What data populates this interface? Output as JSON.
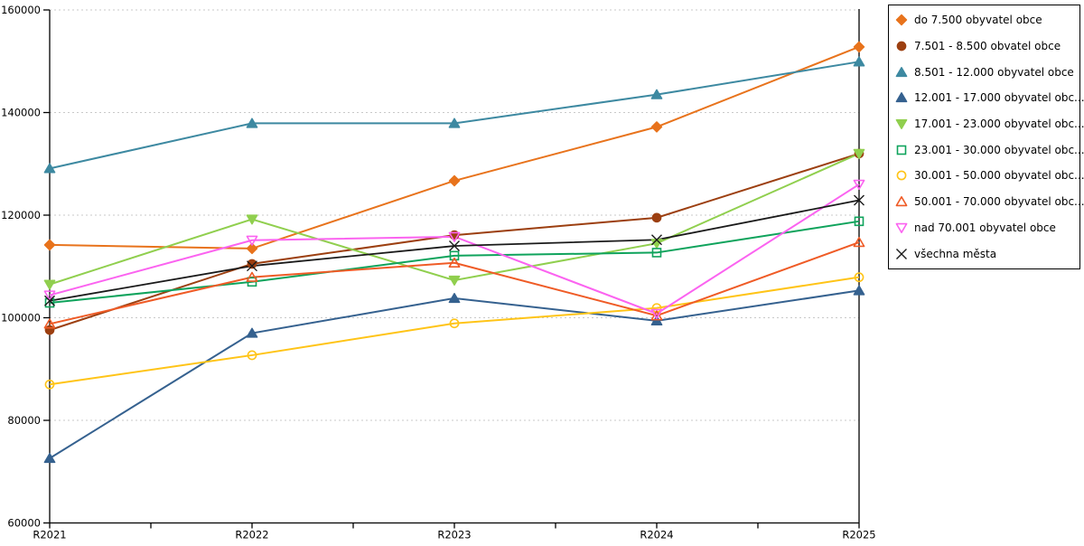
{
  "chart_data": {
    "type": "line",
    "title": "",
    "xlabel": "",
    "ylabel": "",
    "categories": [
      "R2021",
      "R2022",
      "R2023",
      "R2024",
      "R2025"
    ],
    "ylim": [
      60000,
      160000
    ],
    "ytick_step": 20000,
    "ytick_labels": [
      "60000",
      "80000",
      "100000",
      "120000",
      "140000",
      "160000"
    ],
    "grid": "horizontal-dashed",
    "legend_position": "top-right",
    "series": [
      {
        "name": "do 7.500 obyvatel obce",
        "color": "#E8731C",
        "marker": "diamond",
        "fill": "solid",
        "values": [
          114200,
          113500,
          126700,
          137200,
          152800
        ]
      },
      {
        "name": "7.501 - 8.500 obvatel obce",
        "color": "#9C3F10",
        "marker": "circle",
        "fill": "solid",
        "values": [
          97600,
          110500,
          116100,
          119500,
          132000
        ]
      },
      {
        "name": "8.501 - 12.000 obyvatel obce",
        "color": "#3D89A1",
        "marker": "triangle-up",
        "fill": "solid",
        "values": [
          129100,
          137900,
          137900,
          143500,
          149900
        ]
      },
      {
        "name": "12.001 - 17.000 obyvatel obc...",
        "color": "#35618F",
        "marker": "triangle-up",
        "fill": "solid",
        "values": [
          72600,
          97000,
          103800,
          99400,
          105300
        ]
      },
      {
        "name": "17.001 - 23.000 obyvatel obc...",
        "color": "#90CF4E",
        "marker": "triangle-down",
        "fill": "solid",
        "values": [
          106500,
          119200,
          107300,
          114500,
          132000
        ]
      },
      {
        "name": "23.001 - 30.000 obyvatel obc...",
        "color": "#0FA35C",
        "marker": "square",
        "fill": "open",
        "values": [
          102900,
          107000,
          112100,
          112700,
          118800
        ]
      },
      {
        "name": "30.001 - 50.000 obyvatel obc...",
        "color": "#FFC417",
        "marker": "circle",
        "fill": "open",
        "values": [
          87000,
          92700,
          98900,
          101900,
          107900
        ]
      },
      {
        "name": "50.001 - 70.000 obyvatel obc...",
        "color": "#EF5B26",
        "marker": "triangle-up",
        "fill": "open",
        "values": [
          98800,
          107900,
          110700,
          100400,
          114700
        ]
      },
      {
        "name": "nad 70.001 obyvatel obce",
        "color": "#FB63F0",
        "marker": "triangle-down",
        "fill": "open",
        "values": [
          104400,
          115100,
          115800,
          100800,
          126000
        ]
      },
      {
        "name": "všechna města",
        "color": "#1A1A1A",
        "marker": "x",
        "fill": "open",
        "values": [
          103300,
          110100,
          114000,
          115200,
          122900
        ]
      }
    ]
  },
  "colors": {
    "background": "#FFFFFF",
    "axis": "#000000",
    "grid": "#C9C9C9",
    "tick_label": "#000000"
  }
}
